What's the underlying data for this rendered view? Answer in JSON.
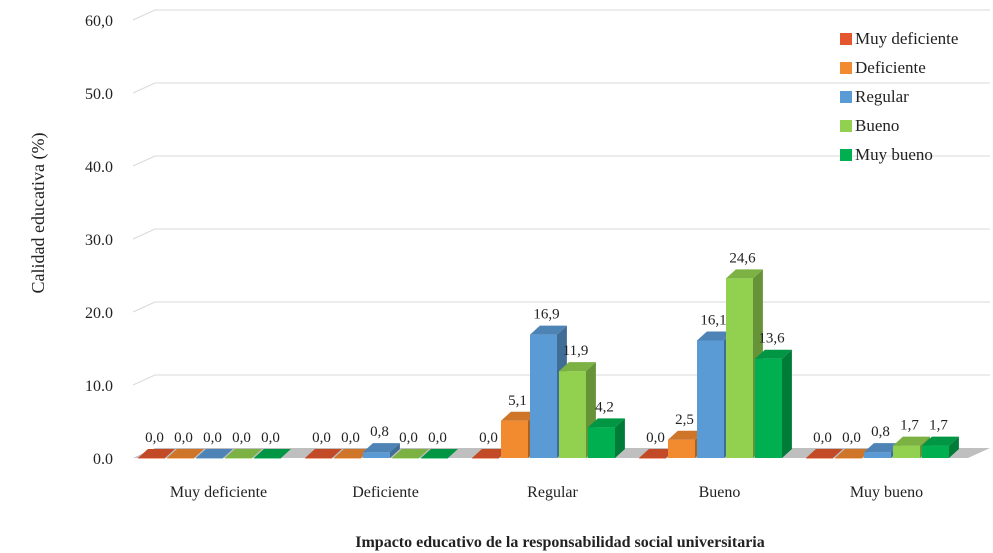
{
  "chart_data": {
    "type": "bar",
    "title": "",
    "xlabel": "Impacto educativo de la responsabilidad social universitaria",
    "ylabel": "Calidad educativa (%)",
    "ylim": [
      0,
      60
    ],
    "yticks": [
      {
        "value": 0,
        "label": "0.0"
      },
      {
        "value": 10,
        "label": "10.0"
      },
      {
        "value": 20,
        "label": "20.0"
      },
      {
        "value": 30,
        "label": "30.0"
      },
      {
        "value": 40,
        "label": "40.0"
      },
      {
        "value": 50,
        "label": "50.0"
      },
      {
        "value": 60,
        "label": "60,0"
      }
    ],
    "grid": true,
    "legend_position": "top-right",
    "categories": [
      "Muy deficiente",
      "Deficiente",
      "Regular",
      "Bueno",
      "Muy bueno"
    ],
    "series": [
      {
        "name": "Muy deficiente",
        "color": "#e4572e",
        "values": [
          0.0,
          0.0,
          0.0,
          0.0,
          0.0
        ],
        "labels": [
          "0,0",
          "0,0",
          "0,0",
          "0,0",
          "0,0"
        ]
      },
      {
        "name": "Deficiente",
        "color": "#f28a30",
        "values": [
          0.0,
          0.0,
          5.1,
          2.5,
          0.0
        ],
        "labels": [
          "0,0",
          "0,0",
          "5,1",
          "2,5",
          "0,0"
        ]
      },
      {
        "name": "Regular",
        "color": "#5b9bd5",
        "values": [
          0.0,
          0.8,
          16.9,
          16.1,
          0.8
        ],
        "labels": [
          "0,0",
          "0,8",
          "16,9",
          "16,1",
          "0,8"
        ]
      },
      {
        "name": "Bueno",
        "color": "#92d050",
        "values": [
          0.0,
          0.0,
          11.9,
          24.6,
          1.7
        ],
        "labels": [
          "0,0",
          "0,0",
          "11,9",
          "24,6",
          "1,7"
        ]
      },
      {
        "name": "Muy bueno",
        "color": "#00b050",
        "values": [
          0.0,
          0.0,
          4.2,
          13.6,
          1.7
        ],
        "labels": [
          "0,0",
          "0,0",
          "4,2",
          "13,6",
          "1,7"
        ]
      }
    ]
  }
}
